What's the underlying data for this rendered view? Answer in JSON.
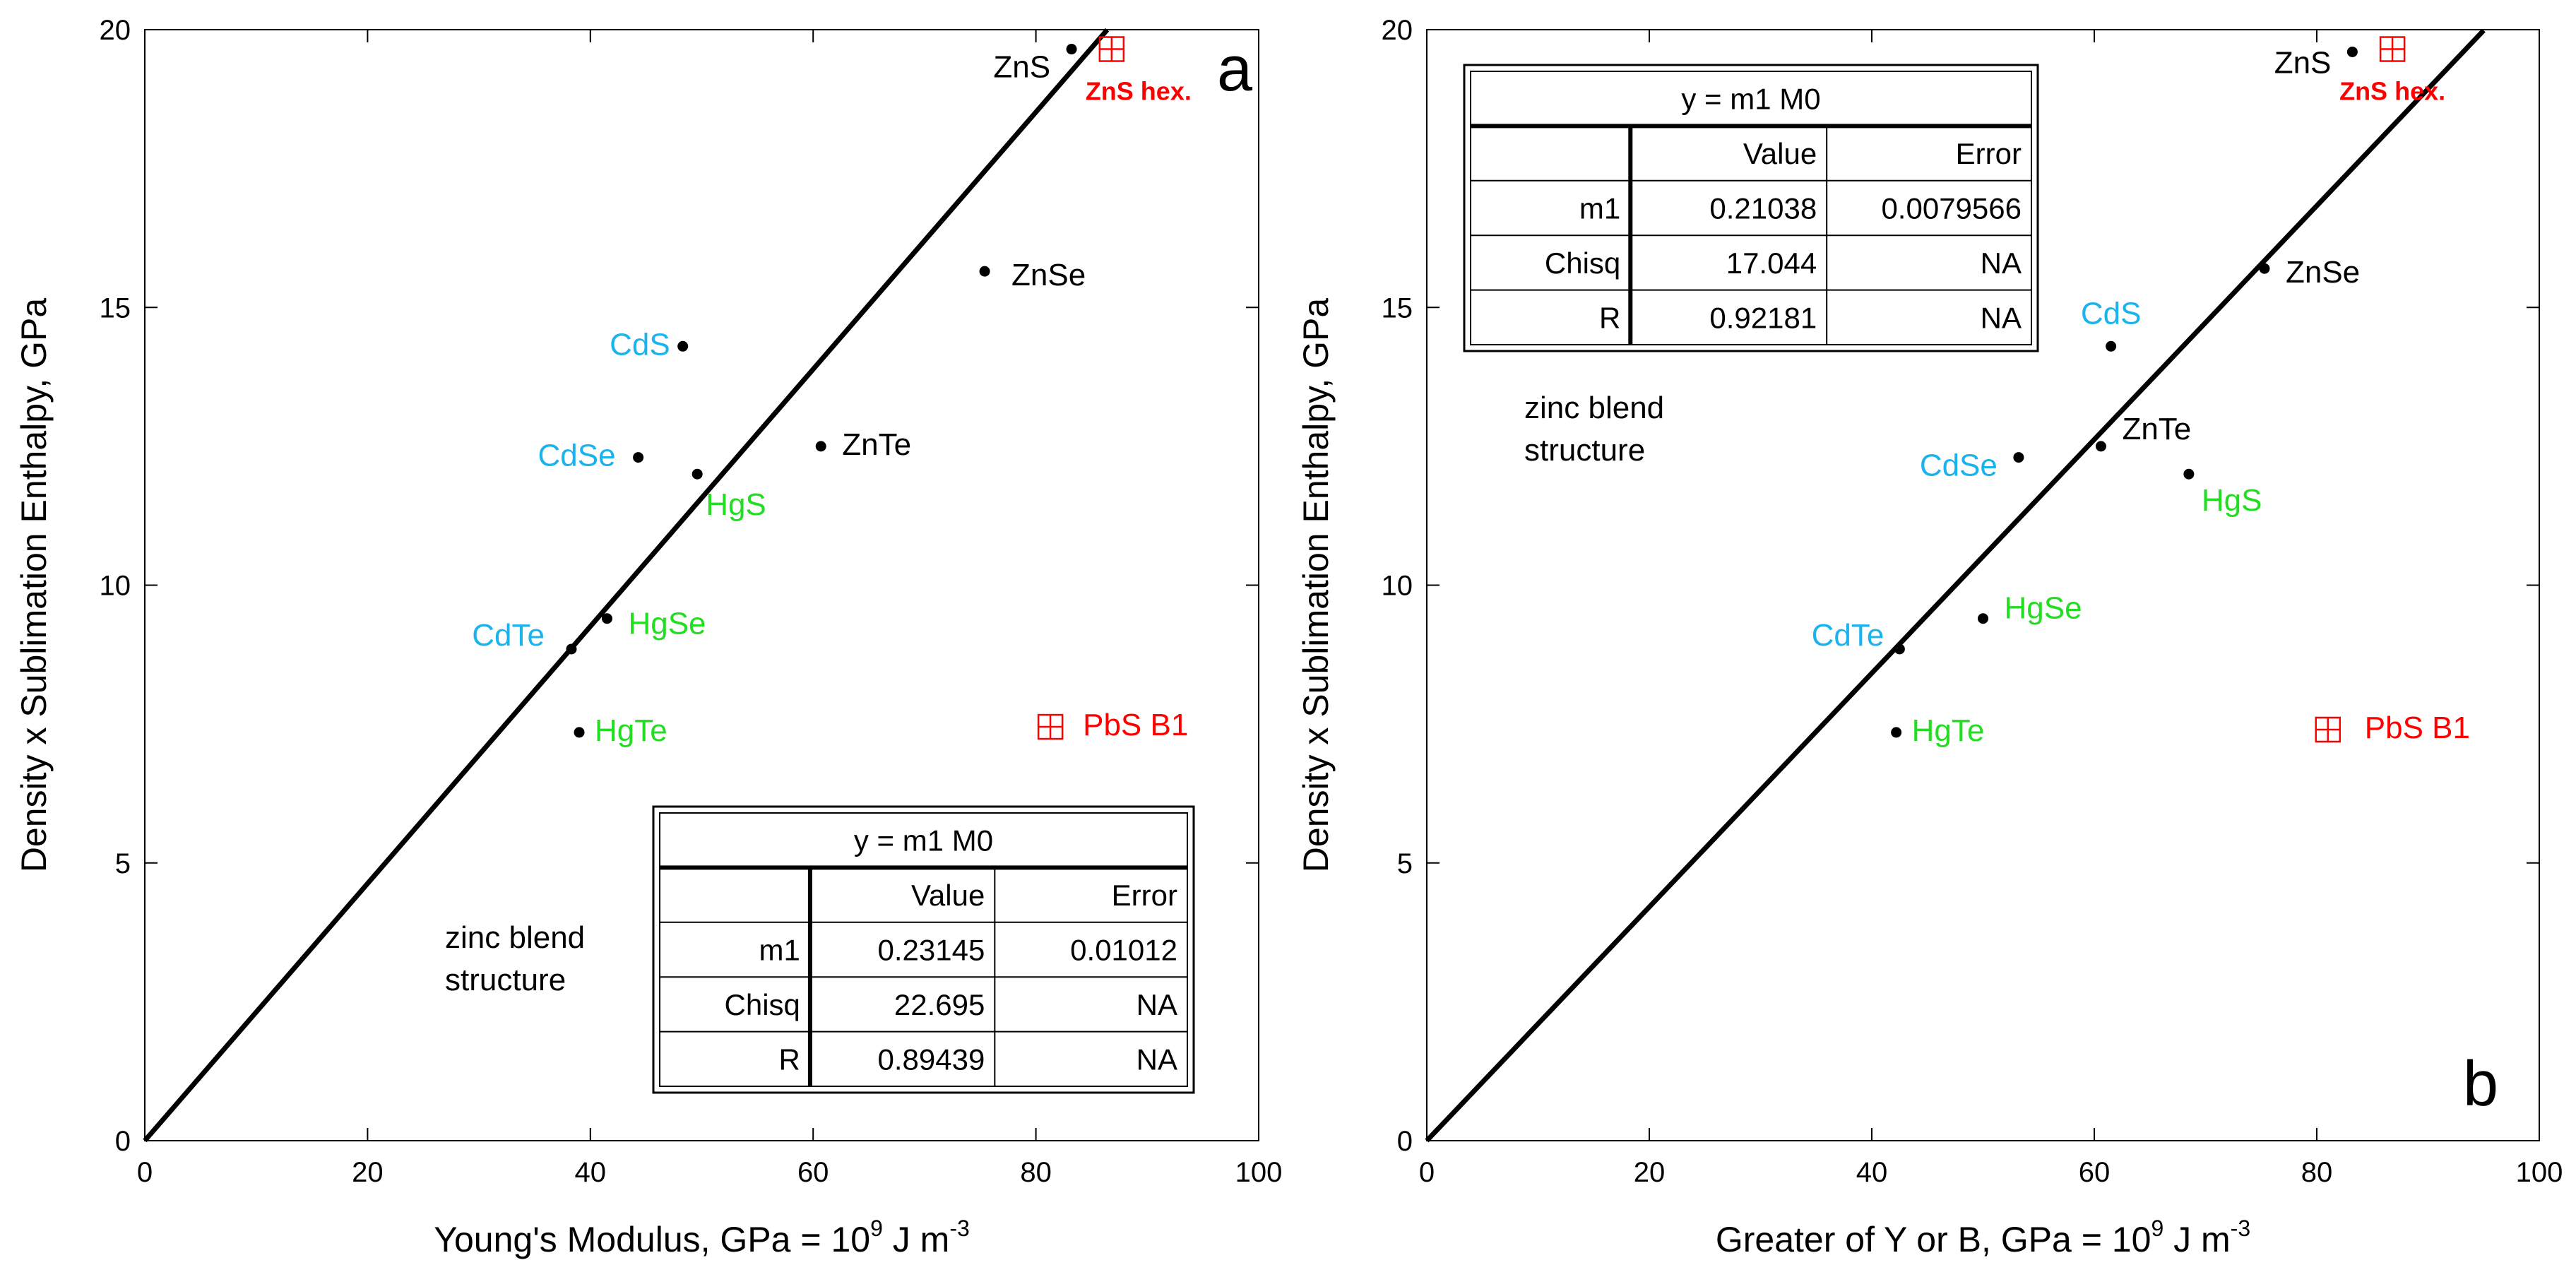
{
  "chart_data": [
    {
      "type": "scatter",
      "panel_label": "a",
      "xlabel": "Young's Modulus, GPa = 10",
      "xlabel_sup": "9",
      "xlabel_unit": "J m",
      "xlabel_unit_sup": "-3",
      "ylabel": "Density x Sublimation Enthalpy, GPa",
      "xlim": [
        0,
        100
      ],
      "ylim": [
        0,
        20
      ],
      "xticks": [
        0,
        20,
        40,
        60,
        80,
        100
      ],
      "yticks": [
        0,
        5,
        10,
        15,
        20
      ],
      "fit_line": {
        "slope": 0.23145,
        "x_end": 86.4
      },
      "note": [
        "zinc blend",
        "structure"
      ],
      "points": [
        {
          "label": "ZnS",
          "x": 83.2,
          "y": 19.65,
          "color": "#000000",
          "group": "black"
        },
        {
          "label": "ZnSe",
          "x": 75.4,
          "y": 15.65,
          "color": "#000000",
          "group": "black"
        },
        {
          "label": "ZnTe",
          "x": 60.7,
          "y": 12.5,
          "color": "#000000",
          "group": "black"
        },
        {
          "label": "CdS",
          "x": 48.3,
          "y": 14.3,
          "color": "#1ab3ee",
          "group": "cyan"
        },
        {
          "label": "CdSe",
          "x": 44.3,
          "y": 12.3,
          "color": "#1ab3ee",
          "group": "cyan"
        },
        {
          "label": "CdTe",
          "x": 38.3,
          "y": 8.85,
          "color": "#1ab3ee",
          "group": "cyan"
        },
        {
          "label": "HgS",
          "x": 49.6,
          "y": 12.0,
          "color": "#22dd22",
          "group": "green"
        },
        {
          "label": "HgSe",
          "x": 41.5,
          "y": 9.4,
          "color": "#22dd22",
          "group": "green"
        },
        {
          "label": "HgTe",
          "x": 39.0,
          "y": 7.35,
          "color": "#22dd22",
          "group": "green"
        }
      ],
      "special_points": [
        {
          "label": "ZnS hex.",
          "x": 86.8,
          "y": 19.65,
          "color": "#ff0000",
          "bold": true
        },
        {
          "label": "PbS B1",
          "x": 81.3,
          "y": 7.45,
          "color": "#ff0000",
          "bold": false
        }
      ],
      "fit_table": {
        "equation": "y = m1  M0",
        "headers": [
          "",
          "Value",
          "Error"
        ],
        "rows": [
          [
            "m1",
            "0.23145",
            "0.01012"
          ],
          [
            "Chisq",
            "22.695",
            "NA"
          ],
          [
            "R",
            "0.89439",
            "NA"
          ]
        ]
      }
    },
    {
      "type": "scatter",
      "panel_label": "b",
      "xlabel": "Greater of Y or B, GPa = 10",
      "xlabel_sup": "9",
      "xlabel_unit": "J m",
      "xlabel_unit_sup": "-3",
      "ylabel": "Density x Sublimation Enthalpy, GPa",
      "xlim": [
        0,
        100
      ],
      "ylim": [
        0,
        20
      ],
      "xticks": [
        0,
        20,
        40,
        60,
        80,
        100
      ],
      "yticks": [
        0,
        5,
        10,
        15,
        20
      ],
      "fit_line": {
        "slope": 0.21038,
        "x_end": 95.0
      },
      "note": [
        "zinc blend",
        "structure"
      ],
      "points": [
        {
          "label": "ZnS",
          "x": 83.2,
          "y": 19.6,
          "color": "#000000",
          "group": "black"
        },
        {
          "label": "ZnSe",
          "x": 75.3,
          "y": 15.7,
          "color": "#000000",
          "group": "black"
        },
        {
          "label": "ZnTe",
          "x": 60.6,
          "y": 12.5,
          "color": "#000000",
          "group": "black"
        },
        {
          "label": "CdS",
          "x": 61.5,
          "y": 14.3,
          "color": "#1ab3ee",
          "group": "cyan"
        },
        {
          "label": "CdSe",
          "x": 53.2,
          "y": 12.3,
          "color": "#1ab3ee",
          "group": "cyan"
        },
        {
          "label": "CdTe",
          "x": 42.5,
          "y": 8.85,
          "color": "#1ab3ee",
          "group": "cyan"
        },
        {
          "label": "HgS",
          "x": 68.5,
          "y": 12.0,
          "color": "#22dd22",
          "group": "green"
        },
        {
          "label": "HgSe",
          "x": 50.0,
          "y": 9.4,
          "color": "#22dd22",
          "group": "green"
        },
        {
          "label": "HgTe",
          "x": 42.2,
          "y": 7.35,
          "color": "#22dd22",
          "group": "green"
        }
      ],
      "special_points": [
        {
          "label": "ZnS hex.",
          "x": 86.8,
          "y": 19.65,
          "color": "#ff0000",
          "bold": true
        },
        {
          "label": "PbS B1",
          "x": 81.0,
          "y": 7.4,
          "color": "#ff0000",
          "bold": false
        }
      ],
      "fit_table": {
        "equation": "y = m1  M0",
        "headers": [
          "",
          "Value",
          "Error"
        ],
        "rows": [
          [
            "m1",
            "0.21038",
            "0.0079566"
          ],
          [
            "Chisq",
            "17.044",
            "NA"
          ],
          [
            "R",
            "0.92181",
            "NA"
          ]
        ]
      }
    }
  ]
}
